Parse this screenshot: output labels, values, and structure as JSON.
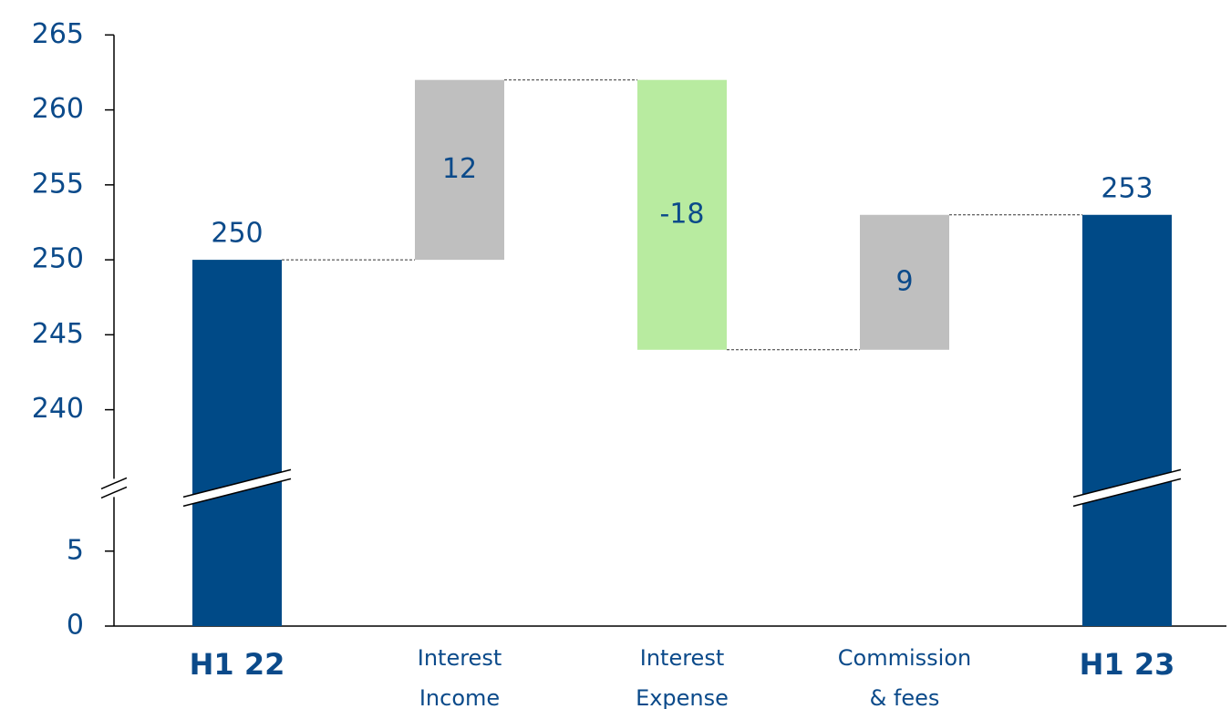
{
  "chart_data": {
    "type": "waterfall",
    "categories": [
      "H1 22",
      "Interest\nIncome",
      "Interest\nExpense",
      "Commission\n& fees",
      "H1 23"
    ],
    "values": [
      250,
      12,
      -18,
      9,
      253
    ],
    "kinds": [
      "total",
      "delta",
      "delta",
      "delta",
      "total"
    ],
    "colors": [
      "#004a87",
      "#bfbfbf",
      "#b8eba0",
      "#bfbfbf",
      "#004a87"
    ],
    "ylim": [
      0,
      265
    ],
    "axis_break": [
      8,
      236
    ],
    "yticks": [
      0,
      5,
      240,
      245,
      250,
      255,
      260,
      265
    ],
    "connectors": true
  }
}
